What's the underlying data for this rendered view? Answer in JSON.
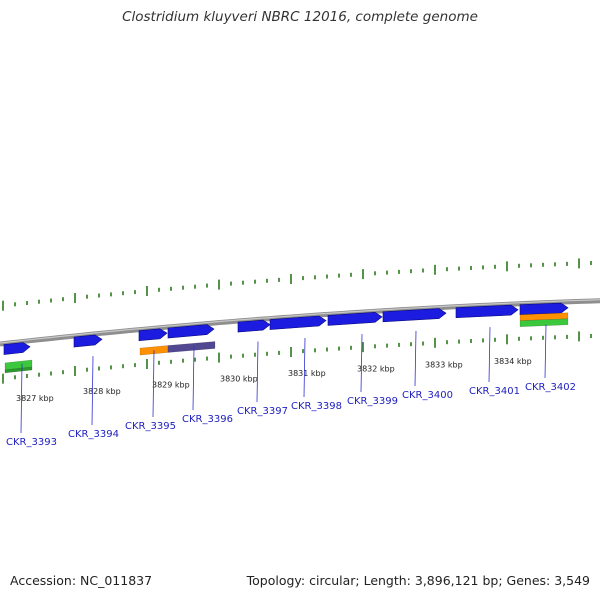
{
  "header": {
    "title": "Clostridium kluyveri NBRC 12016, complete genome"
  },
  "footer": {
    "accession": "Accession: NC_011837",
    "summary": "Topology: circular; Length: 3,896,121 bp; Genes: 3,549"
  },
  "colors": {
    "backbone": "#8e8e8e",
    "tick": "#2a7a1a",
    "gene_forward": "#1c1ce0",
    "gene_orange": "#ff9000",
    "gene_green": "#3cc83c",
    "gene_purple": "#504890",
    "label": "#2020c0",
    "leader": "#3030d0"
  },
  "scale_labels": [
    "3827 kbp",
    "3828 kbp",
    "3829 kbp",
    "3830 kbp",
    "3831 kbp",
    "3832 kbp",
    "3833 kbp",
    "3834 kbp"
  ],
  "genes": [
    "CKR_3393",
    "CKR_3394",
    "CKR_3395",
    "CKR_3396",
    "CKR_3397",
    "CKR_3398",
    "CKR_3399",
    "CKR_3400",
    "CKR_3401",
    "CKR_3402"
  ]
}
